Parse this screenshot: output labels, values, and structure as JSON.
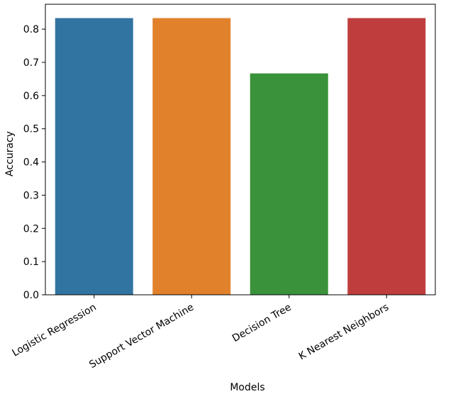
{
  "chart_data": {
    "type": "bar",
    "title": "",
    "xlabel": "Models",
    "ylabel": "Accuracy",
    "categories": [
      "Logistic Regression",
      "Support Vector Machine",
      "Decision Tree",
      "K Nearest Neighbors"
    ],
    "values": [
      0.8333,
      0.8333,
      0.6667,
      0.8333
    ],
    "colors": [
      "#3274a1",
      "#e1812c",
      "#3a923a",
      "#c03d3e"
    ],
    "ylim": [
      0,
      0.875
    ],
    "yticks": [
      0.0,
      0.1,
      0.2,
      0.3,
      0.4,
      0.5,
      0.6,
      0.7,
      0.8
    ],
    "ytick_labels": [
      "0.0",
      "0.1",
      "0.2",
      "0.3",
      "0.4",
      "0.5",
      "0.6",
      "0.7",
      "0.8"
    ],
    "grid": false,
    "legend": "none"
  }
}
